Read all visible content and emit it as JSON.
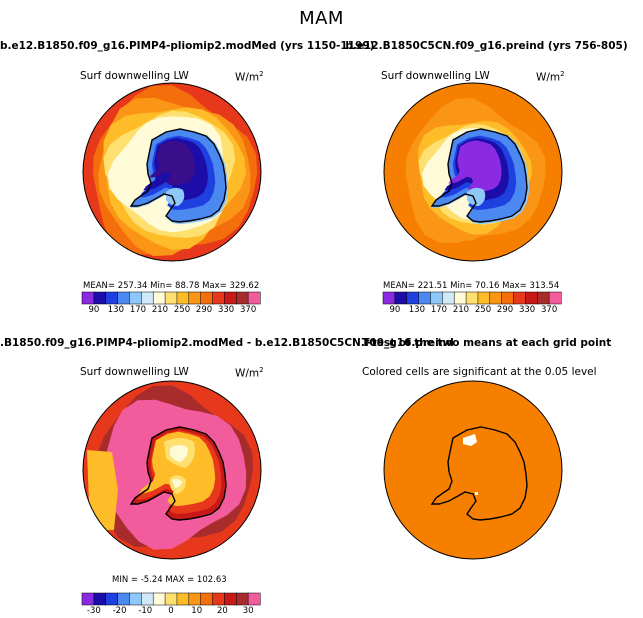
{
  "season_title": "MAM",
  "panels": {
    "top_left": {
      "title": "b.e12.B1850.f09_g16.PIMP4-pliomip2.modMed (yrs 1150-1199)",
      "variable": "Surf downwelling LW",
      "units": "W/m",
      "units_exp": "2",
      "stats": "MEAN= 257.34   Min=  88.78   Max= 329.62"
    },
    "top_right": {
      "title": "b.e12.B1850C5CN.f09_g16.preind (yrs 756-805)",
      "variable": "Surf downwelling LW",
      "units": "W/m",
      "units_exp": "2",
      "stats": "MEAN= 221.51   Min=  70.16   Max= 313.54"
    },
    "bottom_left": {
      "title": ".B1850.f09_g16.PIMP4-pliomip2.modMed - b.e12.B1850C5CN.f09_g16.preind",
      "variable": "Surf downwelling LW",
      "units": "W/m",
      "units_exp": "2",
      "stats": "MIN =   -5.24  MAX = 102.63"
    },
    "bottom_right": {
      "title": "T-test of the two means at each grid point",
      "note": "Colored cells are significant at the 0.05 level"
    }
  },
  "colorbars": {
    "absolute": {
      "colors": [
        "#8a2be2",
        "#1c0ca8",
        "#1f40e0",
        "#4b88f0",
        "#8ec8f8",
        "#cfe8fa",
        "#fffbd8",
        "#fde070",
        "#fdbc28",
        "#fa9516",
        "#f46e0c",
        "#e8381c",
        "#c81818",
        "#a82c2c",
        "#f25c9c"
      ],
      "tick_labels": [
        "90",
        "130",
        "170",
        "210",
        "250",
        "290",
        "330",
        "370"
      ]
    },
    "difference": {
      "colors": [
        "#8a2be2",
        "#1c0ca8",
        "#1f40e0",
        "#4b88f0",
        "#8ec8f8",
        "#cfe8fa",
        "#fffbd8",
        "#fde070",
        "#fdbc28",
        "#fa9516",
        "#f46e0c",
        "#e8381c",
        "#c81818",
        "#a82c2c",
        "#f25c9c"
      ],
      "tick_labels": [
        "-30",
        "-20",
        "-10",
        "0",
        "10",
        "20",
        "30"
      ]
    }
  },
  "map_colors": {
    "abs_rings": [
      "#e8381c",
      "#f46e0c",
      "#fa9516",
      "#fdbc28",
      "#fde070",
      "#fffbd8"
    ],
    "ocean_orange": "#f77f00",
    "ice_light": "#8ec8f8",
    "ice_mid": "#4b88f0",
    "ice_dark": "#1f40e0",
    "ice_deep": "#1c0ca8",
    "ice_violet": "#8a2be2",
    "diff_pink": "#f25c9c",
    "diff_maroon": "#a82c2c",
    "diff_red": "#e8381c",
    "diff_dark_red": "#c81818",
    "diff_orange": "#fdbc28",
    "diff_yellow": "#fde070",
    "ttest_orange": "#f77f00"
  }
}
